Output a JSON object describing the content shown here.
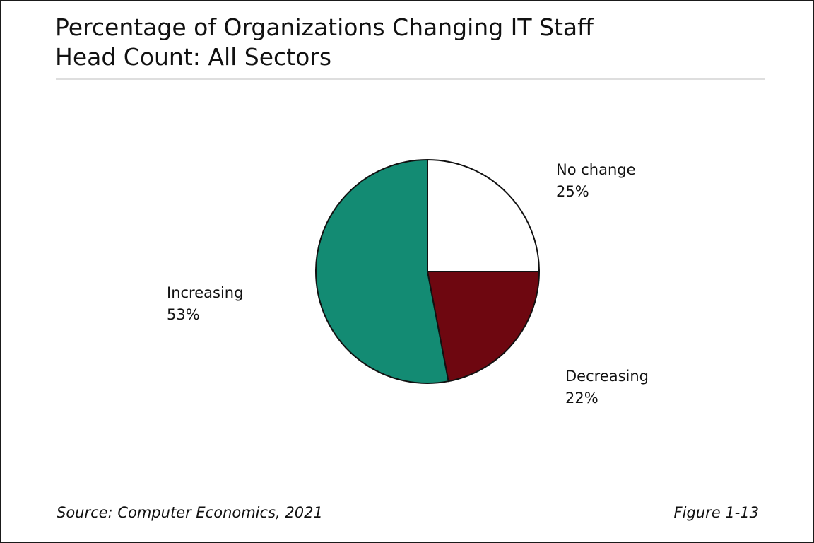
{
  "chart_data": {
    "type": "pie",
    "title": "Percentage of Organizations Changing IT Staff Head Count: All Sectors",
    "title_lines": [
      "Percentage of Organizations Changing IT Staff",
      "Head Count: All Sectors"
    ],
    "slices": [
      {
        "label": "No change",
        "value": 25,
        "value_label": "25%",
        "color": "#ffffff"
      },
      {
        "label": "Decreasing",
        "value": 22,
        "value_label": "22%",
        "color": "#6e0710"
      },
      {
        "label": "Increasing",
        "value": 53,
        "value_label": "53%",
        "color": "#138b73"
      }
    ],
    "start_angle": "12 o'clock",
    "direction": "clockwise",
    "legend": "none"
  },
  "footer": {
    "source": "Source: Computer Economics, 2021",
    "figure": "Figure 1-13"
  }
}
